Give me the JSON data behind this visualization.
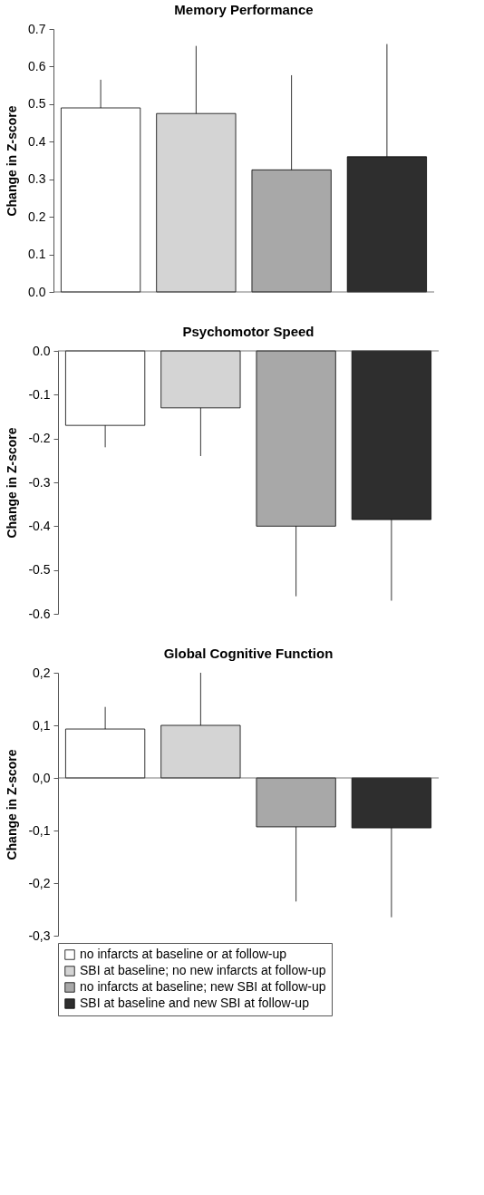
{
  "chart_data": [
    {
      "type": "bar",
      "title": "Memory Performance",
      "ylabel": "Change in Z-score",
      "categories": [
        null
      ],
      "ylim": [
        0,
        0.7
      ],
      "yticks": [
        {
          "value": 0,
          "label": "0.0"
        },
        0.1,
        0.2,
        0.3,
        0.4,
        0.5,
        0.6,
        0.7
      ],
      "grid": false,
      "ref_lines": [
        {
          "axis": "y",
          "value": 0
        }
      ],
      "series": [
        {
          "color": "#ffffff",
          "values": [
            0.49
          ],
          "errors": [
            [
              0.49,
              0.565
            ]
          ]
        },
        {
          "color": "#d4d4d4",
          "values": [
            0.475
          ],
          "errors": [
            [
              0.475,
              0.655
            ]
          ]
        },
        {
          "color": "#a8a8a8",
          "values": [
            0.325
          ],
          "errors": [
            [
              0.325,
              0.577
            ]
          ]
        },
        {
          "color": "#2e2e2e",
          "values": [
            0.36
          ],
          "errors": [
            [
              0.36,
              0.66
            ]
          ]
        }
      ]
    },
    {
      "type": "bar",
      "title": "Psychomotor Speed",
      "ylabel": "Change in Z-score",
      "categories": [
        null
      ],
      "ylim": [
        -0.6,
        0
      ],
      "yticks": [
        -0.6,
        -0.5,
        -0.4,
        -0.3,
        -0.2,
        -0.1,
        {
          "value": 0,
          "label": "0.0"
        }
      ],
      "grid": false,
      "ref_lines": [
        {
          "axis": "y",
          "value": 0
        }
      ],
      "series": [
        {
          "color": "#ffffff",
          "values": [
            -0.17
          ],
          "errors": [
            [
              -0.22,
              -0.17
            ]
          ]
        },
        {
          "color": "#d4d4d4",
          "values": [
            -0.13
          ],
          "errors": [
            [
              -0.24,
              -0.13
            ]
          ]
        },
        {
          "color": "#a8a8a8",
          "values": [
            -0.4
          ],
          "errors": [
            [
              -0.56,
              -0.4
            ]
          ]
        },
        {
          "color": "#2e2e2e",
          "values": [
            -0.385
          ],
          "errors": [
            [
              -0.57,
              -0.385
            ]
          ]
        }
      ]
    },
    {
      "type": "bar",
      "title": "Global Cognitive Function",
      "ylabel": "Change in Z-score",
      "categories": [
        null
      ],
      "ylim": [
        -0.3,
        0.2
      ],
      "yticks": [
        {
          "value": -0.3,
          "label": "-0,3"
        },
        {
          "value": -0.2,
          "label": "-0,2"
        },
        {
          "value": -0.1,
          "label": "-0,1"
        },
        {
          "value": 0,
          "label": "0,0"
        },
        {
          "value": 0.1,
          "label": "0,1"
        },
        {
          "value": 0.2,
          "label": "0,2"
        }
      ],
      "grid": false,
      "legend": "bottom",
      "ref_lines": [
        {
          "axis": "y",
          "value": 0
        }
      ],
      "series": [
        {
          "name": "no infarcts at baseline or at follow-up",
          "color": "#ffffff",
          "values": [
            0.093
          ],
          "errors": [
            [
              0.093,
              0.135
            ]
          ]
        },
        {
          "name": "SBI at baseline; no new infarcts at follow-up",
          "color": "#d4d4d4",
          "values": [
            0.1
          ],
          "errors": [
            [
              0.1,
              0.2
            ]
          ]
        },
        {
          "name": "no infarcts at baseline; new SBI at follow-up",
          "color": "#a8a8a8",
          "values": [
            -0.093
          ],
          "errors": [
            [
              -0.235,
              -0.093
            ]
          ]
        },
        {
          "name": "SBI at baseline and new SBI at follow-up",
          "color": "#2e2e2e",
          "values": [
            -0.095
          ],
          "errors": [
            [
              -0.265,
              -0.095
            ]
          ]
        }
      ]
    }
  ]
}
